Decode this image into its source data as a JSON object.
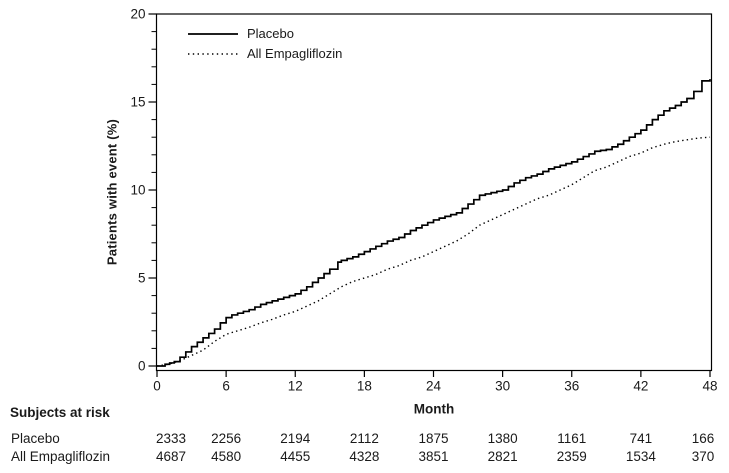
{
  "figure": {
    "background_color": "#ffffff",
    "line_color": "#000000",
    "text_color": "#1a1a1a",
    "y_axis_label": "Patients with event (%)",
    "x_axis_label": "Month"
  },
  "chart_data": {
    "type": "line",
    "title": "",
    "xlabel": "Month",
    "ylabel": "Patients with event (%)",
    "xlim": [
      0,
      48
    ],
    "ylim": [
      0,
      20
    ],
    "x_ticks": [
      0,
      6,
      12,
      18,
      24,
      30,
      36,
      42,
      48
    ],
    "y_ticks": [
      0,
      5,
      10,
      15,
      20
    ],
    "y_minor_tick_interval": 1,
    "grid": false,
    "legend_position": "top-left-inside",
    "series": [
      {
        "name": "Placebo",
        "style": "solid",
        "step": true,
        "points": [
          [
            0,
            0
          ],
          [
            0.7,
            0.1
          ],
          [
            1.5,
            0.25
          ],
          [
            2,
            0.5
          ],
          [
            2.5,
            0.8
          ],
          [
            3,
            1.1
          ],
          [
            3.5,
            1.35
          ],
          [
            4,
            1.6
          ],
          [
            4.5,
            1.85
          ],
          [
            5,
            2.1
          ],
          [
            5.5,
            2.45
          ],
          [
            6,
            2.75
          ],
          [
            6.5,
            2.9
          ],
          [
            7,
            3.0
          ],
          [
            8,
            3.2
          ],
          [
            9,
            3.5
          ],
          [
            10,
            3.7
          ],
          [
            11,
            3.9
          ],
          [
            12,
            4.1
          ],
          [
            13,
            4.5
          ],
          [
            14,
            5.0
          ],
          [
            15,
            5.5
          ],
          [
            15.7,
            5.9
          ],
          [
            16,
            6.0
          ],
          [
            17,
            6.2
          ],
          [
            18,
            6.5
          ],
          [
            19,
            6.8
          ],
          [
            20,
            7.1
          ],
          [
            21,
            7.3
          ],
          [
            22,
            7.7
          ],
          [
            23,
            8.0
          ],
          [
            24,
            8.3
          ],
          [
            25,
            8.5
          ],
          [
            26,
            8.7
          ],
          [
            27,
            9.2
          ],
          [
            28,
            9.7
          ],
          [
            29,
            9.85
          ],
          [
            30,
            10.0
          ],
          [
            31,
            10.4
          ],
          [
            32,
            10.7
          ],
          [
            33,
            10.9
          ],
          [
            34,
            11.2
          ],
          [
            35,
            11.4
          ],
          [
            36,
            11.6
          ],
          [
            37,
            11.9
          ],
          [
            38,
            12.2
          ],
          [
            39,
            12.3
          ],
          [
            40,
            12.6
          ],
          [
            41,
            13.0
          ],
          [
            42,
            13.4
          ],
          [
            43,
            14.0
          ],
          [
            44,
            14.5
          ],
          [
            45,
            14.8
          ],
          [
            46,
            15.2
          ],
          [
            46.6,
            15.6
          ],
          [
            47.3,
            16.2
          ],
          [
            48,
            16.3
          ]
        ]
      },
      {
        "name": "All Empagliflozin",
        "style": "dotted",
        "step": false,
        "points": [
          [
            0,
            0
          ],
          [
            1,
            0.1
          ],
          [
            2,
            0.3
          ],
          [
            3,
            0.6
          ],
          [
            4,
            0.9
          ],
          [
            5,
            1.4
          ],
          [
            6,
            1.8
          ],
          [
            7,
            2.0
          ],
          [
            8,
            2.2
          ],
          [
            9,
            2.45
          ],
          [
            10,
            2.65
          ],
          [
            11,
            2.9
          ],
          [
            12,
            3.1
          ],
          [
            13,
            3.4
          ],
          [
            14,
            3.7
          ],
          [
            15,
            4.1
          ],
          [
            16,
            4.5
          ],
          [
            17,
            4.8
          ],
          [
            18,
            5.0
          ],
          [
            19,
            5.2
          ],
          [
            20,
            5.5
          ],
          [
            21,
            5.7
          ],
          [
            22,
            6.0
          ],
          [
            23,
            6.2
          ],
          [
            24,
            6.5
          ],
          [
            25,
            6.8
          ],
          [
            26,
            7.1
          ],
          [
            27,
            7.5
          ],
          [
            28,
            8.0
          ],
          [
            29,
            8.3
          ],
          [
            30,
            8.6
          ],
          [
            31,
            8.9
          ],
          [
            32,
            9.2
          ],
          [
            33,
            9.5
          ],
          [
            34,
            9.7
          ],
          [
            35,
            10.0
          ],
          [
            36,
            10.3
          ],
          [
            37,
            10.7
          ],
          [
            38,
            11.1
          ],
          [
            39,
            11.3
          ],
          [
            40,
            11.6
          ],
          [
            41,
            11.9
          ],
          [
            42,
            12.1
          ],
          [
            43,
            12.4
          ],
          [
            44,
            12.6
          ],
          [
            45,
            12.75
          ],
          [
            46,
            12.85
          ],
          [
            47,
            12.95
          ],
          [
            48,
            13.0
          ]
        ]
      }
    ]
  },
  "at_risk_table": {
    "header": "Subjects at risk",
    "months": [
      0,
      6,
      12,
      18,
      24,
      30,
      36,
      42,
      48
    ],
    "rows": [
      {
        "label": "Placebo",
        "values": [
          "2333",
          "2256",
          "2194",
          "2112",
          "1875",
          "1380",
          "1161",
          "741",
          "166"
        ]
      },
      {
        "label": "All Empagliflozin",
        "values": [
          "4687",
          "4580",
          "4455",
          "4328",
          "3851",
          "2821",
          "2359",
          "1534",
          "370"
        ]
      }
    ]
  }
}
